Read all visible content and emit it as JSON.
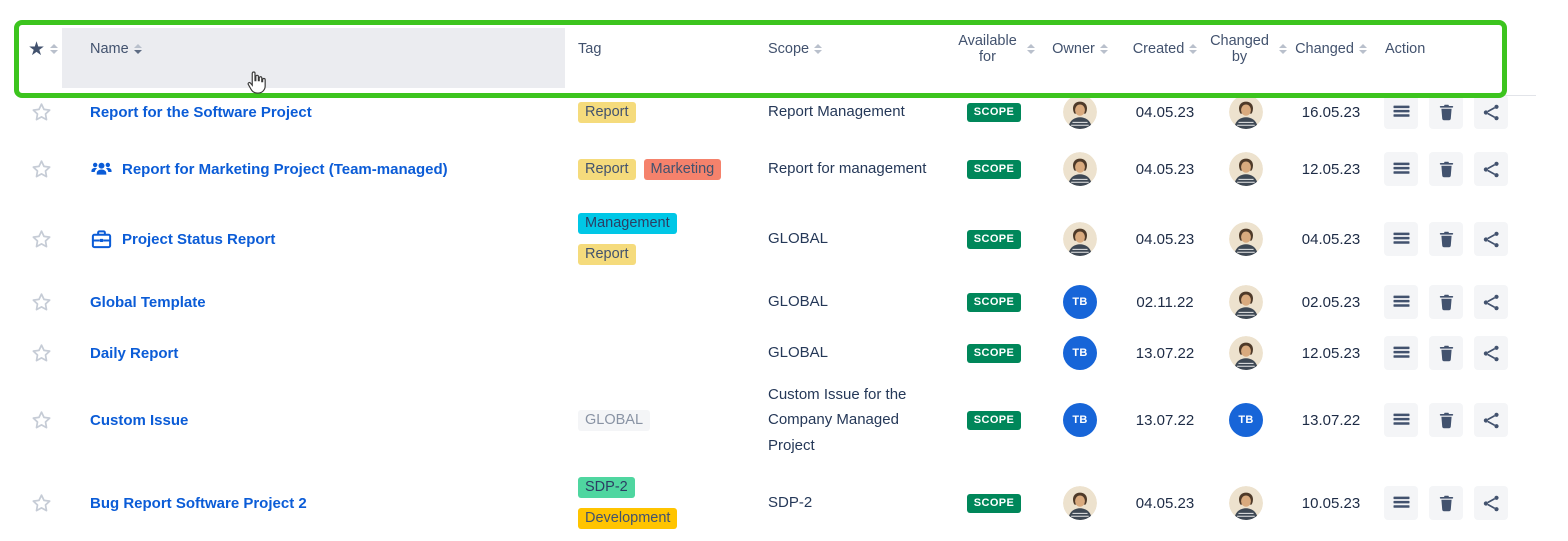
{
  "annotation": {
    "highlight_color": "#3CC41E"
  },
  "colors": {
    "link": "#0B5CD7",
    "badge_scope_bg": "#00875A",
    "avatar_tb_bg": "#1765D8",
    "header_text": "#42526E"
  },
  "header": {
    "columns": [
      {
        "key": "favorite",
        "label": "",
        "sortable": true,
        "icon": "star-filled-icon"
      },
      {
        "key": "name",
        "label": "Name",
        "sortable": true,
        "sorted": "desc"
      },
      {
        "key": "tag",
        "label": "Tag",
        "sortable": false
      },
      {
        "key": "scope",
        "label": "Scope",
        "sortable": true
      },
      {
        "key": "available_for",
        "label": "Available for",
        "sortable": true
      },
      {
        "key": "owner",
        "label": "Owner",
        "sortable": true
      },
      {
        "key": "created",
        "label": "Created",
        "sortable": true
      },
      {
        "key": "changed_by",
        "label": "Changed by",
        "sortable": true
      },
      {
        "key": "changed",
        "label": "Changed",
        "sortable": true
      },
      {
        "key": "action",
        "label": "Action",
        "sortable": false
      }
    ]
  },
  "tag_styles": {
    "yellow": {
      "bg": "#F5DB7C",
      "fg": "#42526E"
    },
    "salmon": {
      "bg": "#F5826C",
      "fg": "#42526E"
    },
    "cyan": {
      "bg": "#00C7E6",
      "fg": "#2C3E63"
    },
    "gray": {
      "bg": "#F4F5F7",
      "fg": "#8993A4"
    },
    "mint": {
      "bg": "#4FD6A0",
      "fg": "#2C3E63"
    },
    "amber": {
      "bg": "#FFC400",
      "fg": "#42526E"
    }
  },
  "avatars": {
    "tb": {
      "type": "initials",
      "text": "TB"
    },
    "photo": {
      "type": "photo",
      "alt": "user-photo-avatar"
    }
  },
  "actions": [
    {
      "name": "menu-button",
      "icon": "menu-lines-icon"
    },
    {
      "name": "delete-button",
      "icon": "trash-icon"
    },
    {
      "name": "share-button",
      "icon": "share-icon"
    }
  ],
  "rows": [
    {
      "name": "Report for the Software Project",
      "name_icon": null,
      "tags": [
        {
          "label": "Report",
          "style": "yellow"
        }
      ],
      "tag_layout": "row",
      "scope": "Report Management",
      "available_for": "SCOPE",
      "owner": "photo",
      "created": "04.05.23",
      "changed_by": "photo",
      "changed": "16.05.23"
    },
    {
      "name": "Report for Marketing Project (Team-managed)",
      "name_icon": "team-icon",
      "tags": [
        {
          "label": "Report",
          "style": "yellow"
        },
        {
          "label": "Marketing",
          "style": "salmon"
        }
      ],
      "tag_layout": "row",
      "scope": "Report for management",
      "available_for": "SCOPE",
      "owner": "photo",
      "created": "04.05.23",
      "changed_by": "photo",
      "changed": "12.05.23"
    },
    {
      "name": "Project Status Report",
      "name_icon": "briefcase-icon",
      "tags": [
        {
          "label": "Management",
          "style": "cyan"
        },
        {
          "label": "Report",
          "style": "yellow"
        }
      ],
      "tag_layout": "column",
      "scope": "GLOBAL",
      "available_for": "SCOPE",
      "owner": "photo",
      "created": "04.05.23",
      "changed_by": "photo",
      "changed": "04.05.23"
    },
    {
      "name": "Global Template",
      "name_icon": null,
      "tags": [],
      "tag_layout": "row",
      "scope": "GLOBAL",
      "available_for": "SCOPE",
      "owner": "tb",
      "created": "02.11.22",
      "changed_by": "photo",
      "changed": "02.05.23"
    },
    {
      "name": "Daily Report",
      "name_icon": null,
      "tags": [],
      "tag_layout": "row",
      "scope": "GLOBAL",
      "available_for": "SCOPE",
      "owner": "tb",
      "created": "13.07.22",
      "changed_by": "photo",
      "changed": "12.05.23"
    },
    {
      "name": "Custom Issue",
      "name_icon": null,
      "tags": [
        {
          "label": "GLOBAL",
          "style": "gray"
        }
      ],
      "tag_layout": "row",
      "scope": "Custom Issue for the Company Managed Project",
      "available_for": "SCOPE",
      "owner": "tb",
      "created": "13.07.22",
      "changed_by": "tb",
      "changed": "13.07.22"
    },
    {
      "name": "Bug Report Software Project 2",
      "name_icon": null,
      "tags": [
        {
          "label": "SDP-2",
          "style": "mint"
        },
        {
          "label": "Development",
          "style": "amber"
        }
      ],
      "tag_layout": "column",
      "scope": "SDP-2",
      "available_for": "SCOPE",
      "owner": "photo",
      "created": "04.05.23",
      "changed_by": "photo",
      "changed": "10.05.23"
    }
  ]
}
